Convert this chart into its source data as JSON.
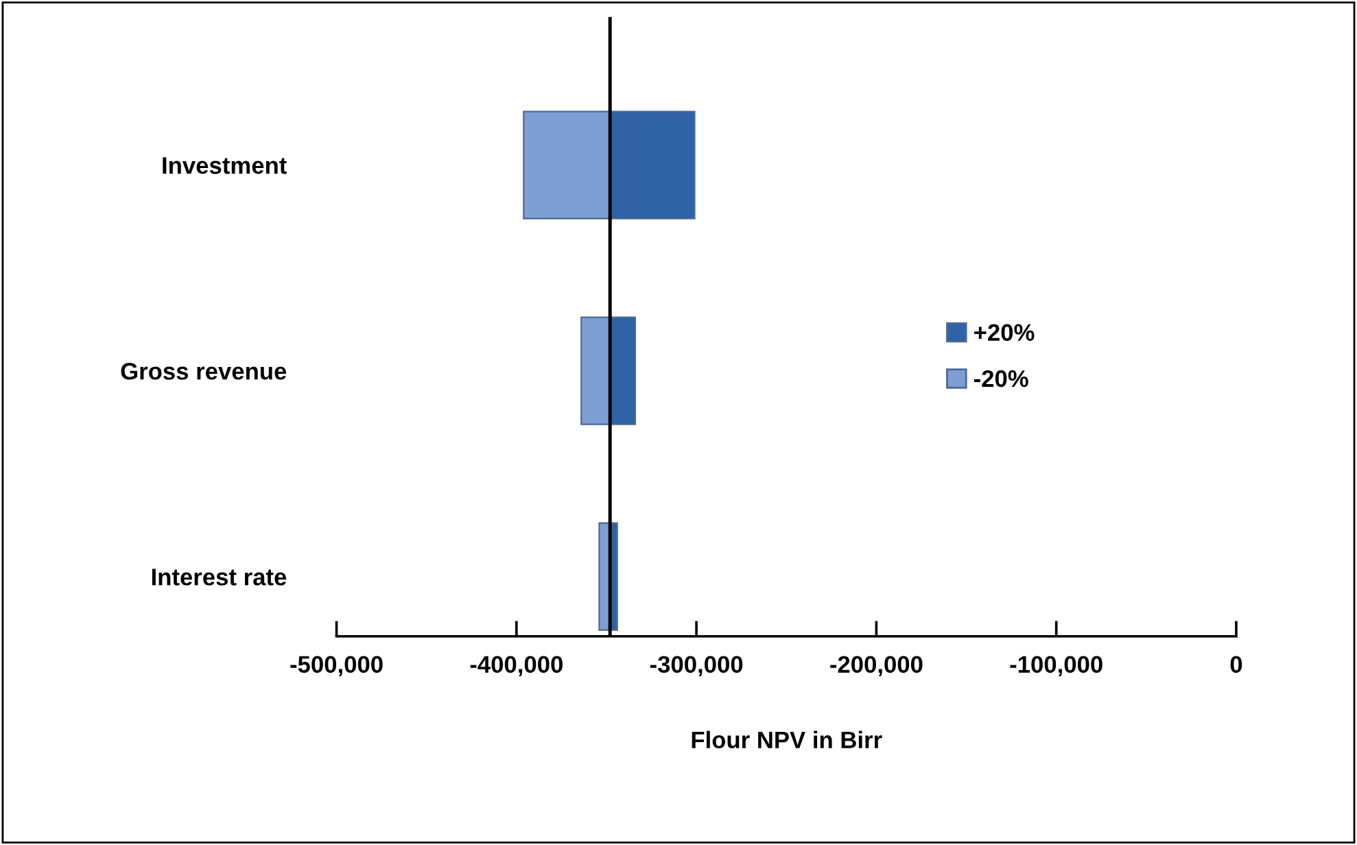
{
  "chart_data": {
    "type": "bar",
    "orientation": "horizontal",
    "xlabel": "Flour NPV in Birr",
    "categories": [
      "Investment",
      "Gross revenue",
      "Interest rate"
    ],
    "series": [
      {
        "name": "+20%",
        "color": "#2f62a6",
        "values": [
          47000,
          14000,
          4000
        ],
        "base": [
          -348000,
          -348000,
          -348000
        ]
      },
      {
        "name": "-20%",
        "color": "#7f9fd3",
        "values": [
          48000,
          16000,
          6000
        ],
        "base": [
          -396000,
          -364000,
          -354000
        ]
      }
    ],
    "xlim": [
      -500000,
      0
    ],
    "xticks": [
      {
        "value": -500000,
        "label": "-500,000"
      },
      {
        "value": -400000,
        "label": "-400,000"
      },
      {
        "value": -300000,
        "label": "-300,000"
      },
      {
        "value": -200000,
        "label": "-200,000"
      },
      {
        "value": -100000,
        "label": "-100,000"
      },
      0
    ],
    "ref_lines": [
      {
        "axis": "x",
        "value": -348000,
        "color": "#000000"
      }
    ],
    "legend": "right",
    "grid": false
  }
}
